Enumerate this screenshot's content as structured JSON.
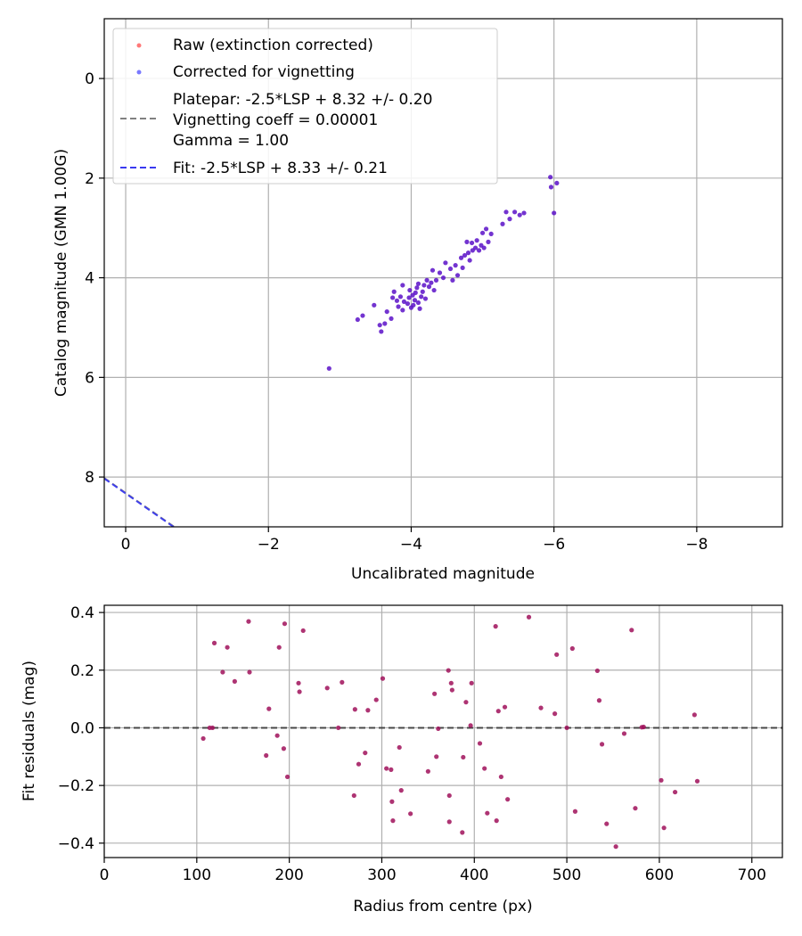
{
  "chart_data": [
    {
      "type": "scatter",
      "xlabel": "Uncalibrated magnitude",
      "ylabel": "Catalog magnitude (GMN 1.00G)",
      "xlim": [
        0.3,
        -9.2
      ],
      "ylim": [
        9.0,
        -1.2
      ],
      "x_ticks": [
        0,
        -2,
        -4,
        -6,
        -8
      ],
      "x_tick_labels": [
        "0",
        "−2",
        "−4",
        "−6",
        "−8"
      ],
      "y_ticks": [
        0,
        2,
        4,
        6,
        8
      ],
      "y_tick_labels": [
        "0",
        "2",
        "4",
        "6",
        "8"
      ],
      "grid": true,
      "legend_position": "top-left",
      "legend": [
        {
          "label": "Raw (extinction corrected)",
          "style": "marker",
          "color": "#ff4040"
        },
        {
          "label": "Corrected for vignetting",
          "style": "marker",
          "color": "#4040ff"
        },
        {
          "label_lines": [
            "Platepar: -2.5*LSP + 8.32 +/- 0.20",
            "Vignetting coeff = 0.00001",
            "Gamma = 1.00"
          ],
          "style": "dashed",
          "color": "#808080"
        },
        {
          "label": "Fit: -2.5*LSP + 8.33 +/- 0.21",
          "style": "dashed",
          "color": "#3a3af0"
        }
      ],
      "lines": [
        {
          "name": "Platepar",
          "slope": -1,
          "intercept": 8.32,
          "color": "#808080"
        },
        {
          "name": "Fit",
          "slope": -1,
          "intercept": 8.33,
          "color": "#3a3af0"
        }
      ],
      "point_color": "#5a10c8",
      "points": [
        [
          -2.85,
          5.82
        ],
        [
          -3.25,
          4.84
        ],
        [
          -3.32,
          4.76
        ],
        [
          -3.48,
          4.55
        ],
        [
          -3.56,
          4.95
        ],
        [
          -3.58,
          5.08
        ],
        [
          -3.63,
          4.92
        ],
        [
          -3.66,
          4.68
        ],
        [
          -3.72,
          4.82
        ],
        [
          -3.74,
          4.4
        ],
        [
          -3.76,
          4.28
        ],
        [
          -3.8,
          4.46
        ],
        [
          -3.82,
          4.58
        ],
        [
          -3.85,
          4.38
        ],
        [
          -3.88,
          4.65
        ],
        [
          -3.88,
          4.15
        ],
        [
          -3.9,
          4.48
        ],
        [
          -3.95,
          4.52
        ],
        [
          -3.97,
          4.4
        ],
        [
          -3.98,
          4.25
        ],
        [
          -4.0,
          4.6
        ],
        [
          -4.02,
          4.35
        ],
        [
          -4.03,
          4.55
        ],
        [
          -4.05,
          4.45
        ],
        [
          -4.06,
          4.3
        ],
        [
          -4.08,
          4.2
        ],
        [
          -4.1,
          4.12
        ],
        [
          -4.1,
          4.5
        ],
        [
          -4.12,
          4.62
        ],
        [
          -4.14,
          4.38
        ],
        [
          -4.16,
          4.28
        ],
        [
          -4.18,
          4.15
        ],
        [
          -4.2,
          4.42
        ],
        [
          -4.22,
          4.05
        ],
        [
          -4.25,
          4.18
        ],
        [
          -4.28,
          4.1
        ],
        [
          -4.3,
          3.85
        ],
        [
          -4.32,
          4.25
        ],
        [
          -4.35,
          4.05
        ],
        [
          -4.4,
          3.9
        ],
        [
          -4.45,
          4.0
        ],
        [
          -4.48,
          3.7
        ],
        [
          -4.55,
          3.82
        ],
        [
          -4.58,
          4.05
        ],
        [
          -4.62,
          3.75
        ],
        [
          -4.65,
          3.95
        ],
        [
          -4.7,
          3.6
        ],
        [
          -4.72,
          3.8
        ],
        [
          -4.75,
          3.55
        ],
        [
          -4.78,
          3.28
        ],
        [
          -4.8,
          3.5
        ],
        [
          -4.82,
          3.65
        ],
        [
          -4.85,
          3.3
        ],
        [
          -4.86,
          3.45
        ],
        [
          -4.9,
          3.4
        ],
        [
          -4.92,
          3.25
        ],
        [
          -4.95,
          3.45
        ],
        [
          -4.98,
          3.35
        ],
        [
          -5.0,
          3.1
        ],
        [
          -5.02,
          3.4
        ],
        [
          -5.05,
          3.02
        ],
        [
          -5.08,
          3.28
        ],
        [
          -5.12,
          3.12
        ],
        [
          -5.28,
          2.92
        ],
        [
          -5.33,
          2.68
        ],
        [
          -5.38,
          2.82
        ],
        [
          -5.45,
          2.68
        ],
        [
          -5.52,
          2.74
        ],
        [
          -5.58,
          2.7
        ],
        [
          -5.95,
          1.98
        ],
        [
          -5.96,
          2.18
        ],
        [
          -6.0,
          2.7
        ],
        [
          -6.04,
          2.1
        ]
      ]
    },
    {
      "type": "scatter",
      "xlabel": "Radius from centre (px)",
      "ylabel": "Fit residuals (mag)",
      "xlim": [
        0,
        733
      ],
      "ylim": [
        -0.45,
        0.425
      ],
      "x_ticks": [
        0,
        100,
        200,
        300,
        400,
        500,
        600,
        700
      ],
      "x_tick_labels": [
        "0",
        "100",
        "200",
        "300",
        "400",
        "500",
        "600",
        "700"
      ],
      "y_ticks": [
        0.4,
        0.2,
        0.0,
        -0.2,
        -0.4
      ],
      "y_tick_labels": [
        "0.4",
        "0.2",
        "0.0",
        "−0.2",
        "−0.4"
      ],
      "grid": true,
      "zero_line": 0.0,
      "point_color": "#a0105a",
      "points": [
        [
          107,
          -0.037
        ],
        [
          114,
          0.0
        ],
        [
          117,
          0.0
        ],
        [
          119,
          0.294
        ],
        [
          128,
          0.193
        ],
        [
          133,
          0.279
        ],
        [
          141,
          0.161
        ],
        [
          156,
          0.369
        ],
        [
          157,
          0.193
        ],
        [
          175,
          -0.096
        ],
        [
          178,
          0.066
        ],
        [
          187,
          -0.027
        ],
        [
          189,
          0.279
        ],
        [
          194,
          -0.072
        ],
        [
          195,
          0.361
        ],
        [
          198,
          -0.17
        ],
        [
          210,
          0.155
        ],
        [
          211,
          0.125
        ],
        [
          215,
          0.337
        ],
        [
          241,
          0.138
        ],
        [
          253,
          0.0
        ],
        [
          257,
          0.158
        ],
        [
          270,
          -0.235
        ],
        [
          271,
          0.064
        ],
        [
          275,
          -0.126
        ],
        [
          282,
          -0.087
        ],
        [
          285,
          0.061
        ],
        [
          294,
          0.097
        ],
        [
          301,
          0.171
        ],
        [
          305,
          -0.141
        ],
        [
          310,
          -0.145
        ],
        [
          311,
          -0.256
        ],
        [
          312,
          -0.322
        ],
        [
          319,
          -0.068
        ],
        [
          321,
          -0.217
        ],
        [
          331,
          -0.298
        ],
        [
          350,
          -0.151
        ],
        [
          357,
          0.118
        ],
        [
          359,
          -0.1
        ],
        [
          361,
          -0.003
        ],
        [
          372,
          0.199
        ],
        [
          373,
          -0.235
        ],
        [
          373,
          -0.326
        ],
        [
          375,
          0.155
        ],
        [
          376,
          0.131
        ],
        [
          387,
          -0.363
        ],
        [
          388,
          -0.102
        ],
        [
          391,
          0.089
        ],
        [
          396,
          0.008
        ],
        [
          397,
          0.155
        ],
        [
          406,
          -0.054
        ],
        [
          411,
          -0.141
        ],
        [
          414,
          -0.296
        ],
        [
          423,
          0.352
        ],
        [
          424,
          -0.322
        ],
        [
          426,
          0.058
        ],
        [
          429,
          -0.17
        ],
        [
          433,
          0.072
        ],
        [
          436,
          -0.248
        ],
        [
          459,
          0.384
        ],
        [
          472,
          0.069
        ],
        [
          487,
          0.049
        ],
        [
          489,
          0.254
        ],
        [
          500,
          0.0
        ],
        [
          506,
          0.275
        ],
        [
          509,
          -0.29
        ],
        [
          533,
          0.198
        ],
        [
          535,
          0.095
        ],
        [
          538,
          -0.057
        ],
        [
          543,
          -0.333
        ],
        [
          553,
          -0.412
        ],
        [
          562,
          -0.02
        ],
        [
          570,
          0.339
        ],
        [
          574,
          -0.279
        ],
        [
          581,
          0.002
        ],
        [
          583,
          0.003
        ],
        [
          602,
          -0.182
        ],
        [
          605,
          -0.347
        ],
        [
          617,
          -0.223
        ],
        [
          638,
          0.045
        ],
        [
          641,
          -0.185
        ]
      ]
    }
  ]
}
